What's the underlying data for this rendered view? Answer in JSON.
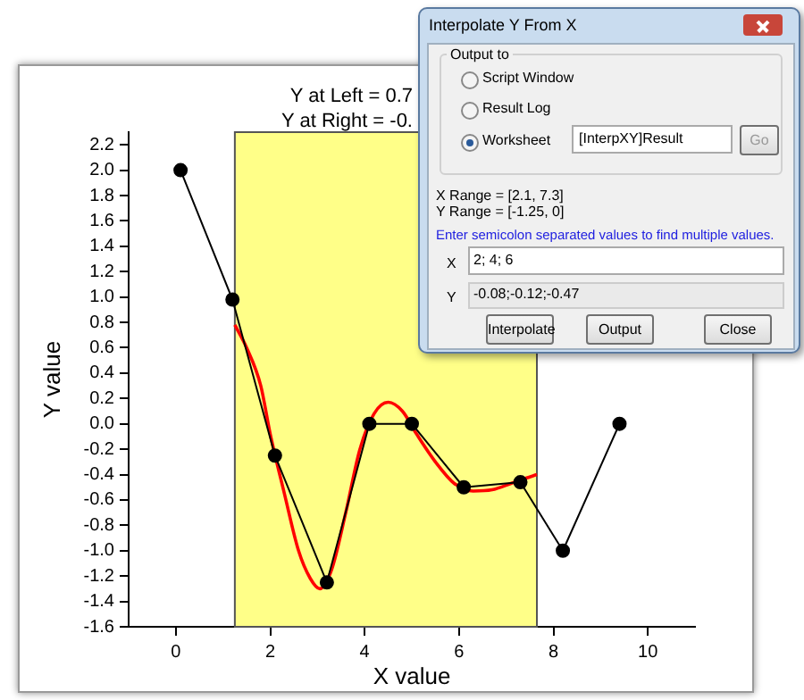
{
  "chart_data": {
    "type": "line",
    "title": "Y at Left = 0.7",
    "subtitle": "Y at Right = -0.",
    "xlabel": "X value",
    "ylabel": "Y value",
    "series": [
      {
        "color": "#000000",
        "marker": "circle",
        "x": [
          0.1,
          1.2,
          2.1,
          3.2,
          4.1,
          5.0,
          6.1,
          7.3,
          8.2,
          9.4
        ],
        "values": [
          2.0,
          0.98,
          -0.25,
          -1.25,
          0,
          0,
          -0.5,
          -0.46,
          -1.0,
          0
        ]
      },
      {
        "color": "#ff0000",
        "marker": "none",
        "x": [
          1.25,
          1.5,
          1.8,
          2.0,
          2.3,
          2.6,
          2.85,
          3.05,
          3.3,
          3.6,
          3.9,
          4.2,
          4.5,
          4.8,
          5.1,
          5.5,
          5.9,
          6.3,
          6.7,
          7.1,
          7.4,
          7.65
        ],
        "values": [
          0.78,
          0.6,
          0.3,
          -0.08,
          -0.55,
          -1.0,
          -1.22,
          -1.3,
          -1.15,
          -0.7,
          -0.2,
          0.08,
          0.17,
          0.1,
          -0.08,
          -0.3,
          -0.47,
          -0.53,
          -0.52,
          -0.47,
          -0.43,
          -0.4
        ]
      }
    ],
    "bands": [
      {
        "axis": "x",
        "from": 1.25,
        "to": 7.65,
        "color": "#ffff88"
      }
    ],
    "xlim": [
      -1,
      11
    ],
    "xticks": [
      0,
      2,
      4,
      6,
      8,
      10
    ],
    "ylim": [
      -1.6,
      2.3
    ],
    "yticks": [
      -1.6,
      -1.4,
      -1.2,
      {
        "value": -1,
        "label": "-1.0"
      },
      -0.8,
      -0.6,
      -0.4,
      -0.2,
      {
        "value": 0,
        "label": "0.0"
      },
      0.2,
      0.4,
      0.6,
      0.8,
      {
        "value": 1,
        "label": "1.0"
      },
      1.2,
      1.4,
      1.6,
      1.8,
      {
        "value": 2,
        "label": "2.0"
      },
      2.2
    ],
    "grid": false,
    "legend": false,
    "annotations": [
      "Interpolate Y From X",
      "Output to",
      "Script Window",
      "Result Log",
      "Worksheet",
      "[InterpXY]Result",
      "Go",
      "X Range = [2.1, 7.3]",
      "Y Range = [-1.25, 0]",
      "Enter semicolon separated values to find multiple values.",
      "X",
      "2; 4; 6",
      "Y",
      "-0.08;-0.12;-0.47",
      "Interpolate",
      "Output",
      "Close"
    ]
  }
}
